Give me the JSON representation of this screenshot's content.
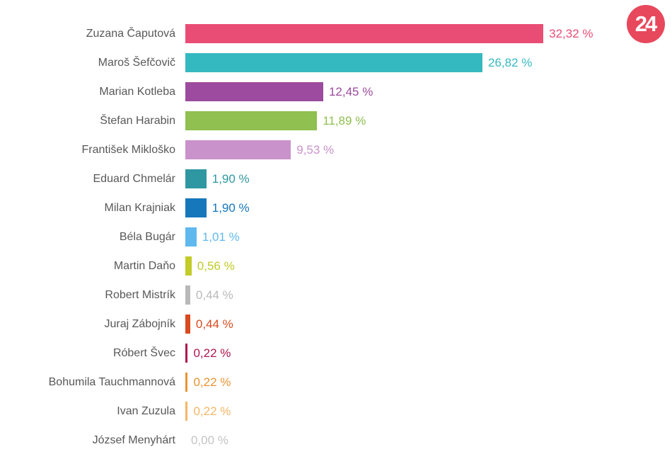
{
  "logo": {
    "text": "24"
  },
  "colors": {
    "logo_bg": "#e8485c",
    "logo_fg": "#ffffff",
    "label_text": "#58585a",
    "background": "#ffffff"
  },
  "chart_data": {
    "type": "bar",
    "orientation": "horizontal",
    "title": "",
    "xlabel": "",
    "ylabel": "",
    "unit": "%",
    "xlim": [
      0,
      43.9
    ],
    "grid": false,
    "legend": false,
    "categories": [
      "Zuzana Čaputová",
      "Maroš Šefčovič",
      "Marian Kotleba",
      "Štefan Harabin",
      "František Mikloško",
      "Eduard Chmelár",
      "Milan Krajniak",
      "Béla Bugár",
      "Martin Daňo",
      "Robert Mistrík",
      "Juraj Zábojník",
      "Róbert Švec",
      "Bohumila Tauchmannová",
      "Ivan Zuzula",
      "József Menyhárt"
    ],
    "values": [
      32.32,
      26.82,
      12.45,
      11.89,
      9.53,
      1.9,
      1.9,
      1.01,
      0.56,
      0.44,
      0.44,
      0.22,
      0.22,
      0.22,
      0.0
    ],
    "value_labels": [
      "32,32 %",
      "26,82 %",
      "12,45 %",
      "11,89 %",
      "9,53 %",
      "1,90 %",
      "1,90 %",
      "1,01 %",
      "0,56 %",
      "0,44 %",
      "0,44 %",
      "0,22 %",
      "0,22 %",
      "0,22 %",
      "0,00 %"
    ],
    "bar_colors": [
      "#e94d75",
      "#35b9c1",
      "#9c4b9e",
      "#8fc050",
      "#c992cb",
      "#2f97a2",
      "#1677bb",
      "#5fb9ee",
      "#c2cb28",
      "#b9b9b9",
      "#d84a20",
      "#b0174f",
      "#eb9332",
      "#f3b666",
      "#c4c4c4"
    ]
  }
}
